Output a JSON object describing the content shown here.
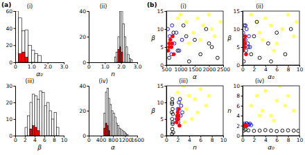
{
  "panel_labels": [
    "(a)",
    "(b)"
  ],
  "chart_data": [
    {
      "type": "histogram",
      "title": "(i)",
      "x_label": "α₀",
      "bins": [
        0,
        0.2,
        0.4,
        0.6,
        0.8,
        1.0,
        1.2,
        1.4,
        1.6
      ],
      "series": [
        {
          "color": "#ffffff",
          "values": [
            60,
            52,
            37,
            38,
            20,
            14,
            10,
            8
          ]
        },
        {
          "color": "#ff0000",
          "values": [
            0,
            10,
            12,
            6,
            0,
            0,
            0,
            0
          ]
        }
      ],
      "xlim": [
        0,
        3
      ],
      "xticks": [
        0,
        {
          "value": 1,
          "label": "1.0"
        },
        {
          "value": 2,
          "label": "2.0"
        },
        {
          "value": 3,
          "label": "3.0"
        }
      ],
      "ylim": [
        0,
        60
      ],
      "yticks": [
        0,
        20,
        40,
        60
      ]
    },
    {
      "type": "histogram",
      "title": "(ii)",
      "x_label": "n",
      "bins": [
        1.6,
        1.7,
        1.8,
        1.9,
        2.0,
        2.1,
        2.2,
        2.3,
        2.4,
        2.5,
        2.6,
        2.7
      ],
      "series": [
        {
          "color": "#ffffff",
          "values": [
            4,
            8,
            20,
            40,
            40,
            30,
            20,
            12,
            6,
            3,
            2
          ]
        },
        {
          "color": "#ff0000",
          "values": [
            0,
            0,
            10,
            12,
            8,
            0,
            0,
            0,
            0,
            0,
            0
          ]
        }
      ],
      "xlim": [
        0,
        3
      ],
      "xticks": [
        0,
        {
          "value": 1,
          "label": "1.0"
        },
        {
          "value": 2,
          "label": "2.0"
        },
        {
          "value": 3,
          "label": "3.0"
        }
      ],
      "ylim": [
        0,
        40
      ],
      "yticks": [
        0,
        20,
        40
      ]
    },
    {
      "type": "histogram",
      "title": "(iii)",
      "x_label": "β",
      "bins": [
        2,
        2.5,
        3,
        3.5,
        4,
        4.5,
        5,
        5.5,
        6,
        6.5,
        7,
        7.5,
        8,
        8.5,
        9
      ],
      "series": [
        {
          "color": "#ffffff",
          "values": [
            5,
            12,
            20,
            25,
            24,
            22,
            27,
            26,
            18,
            20,
            15,
            10,
            14,
            5
          ]
        },
        {
          "color": "#ff0000",
          "values": [
            0,
            0,
            4,
            6,
            5,
            3,
            0,
            0,
            0,
            0,
            0,
            0,
            0,
            0
          ]
        }
      ],
      "xlim": [
        0,
        10
      ],
      "xticks": [
        0,
        2,
        4,
        6,
        8,
        10
      ],
      "ylim": [
        0,
        30
      ],
      "yticks": [
        0,
        10,
        20,
        30
      ]
    },
    {
      "type": "histogram",
      "title": "(iv)",
      "x_label": "α",
      "bins": [
        500,
        550,
        600,
        650,
        700,
        750,
        800,
        850,
        900,
        950,
        1000,
        1050,
        1100,
        1150,
        1200,
        1250,
        1300
      ],
      "series": [
        {
          "color": "#ffffff",
          "values": [
            18,
            35,
            38,
            30,
            25,
            20,
            18,
            15,
            10,
            8,
            6,
            5,
            4,
            3,
            2,
            1
          ]
        },
        {
          "color": "#ff0000",
          "values": [
            6,
            10,
            8,
            4,
            0,
            0,
            0,
            0,
            0,
            0,
            0,
            0,
            0,
            0,
            0,
            0
          ]
        }
      ],
      "xlim": [
        0,
        1600
      ],
      "xticks": [
        0,
        400,
        800,
        1200,
        1600
      ],
      "ylim": [
        0,
        40
      ],
      "yticks": [
        0,
        20,
        40
      ]
    },
    {
      "type": "scatter",
      "title": "(i)",
      "x_label": "α",
      "y_label": "β",
      "xlim": [
        500,
        2500
      ],
      "xticks": [
        500,
        1000,
        1500,
        2000,
        2500
      ],
      "ylim": [
        0,
        15
      ],
      "yticks": [
        0,
        5,
        10,
        15
      ],
      "series": [
        {
          "color": "#ffff66",
          "marker": "circle",
          "x": [
            1000,
            1200,
            1450,
            1600,
            1800,
            2000,
            2200,
            2400,
            1300,
            2100,
            1700,
            900
          ],
          "values": [
            14,
            12,
            9,
            13,
            11,
            14,
            8,
            12,
            6,
            10,
            7,
            13
          ]
        },
        {
          "color": "#000000",
          "marker": "open-circle",
          "x": [
            600,
            750,
            900,
            1100,
            1300,
            1500,
            1700,
            1900,
            2100,
            2300,
            1200,
            2000
          ],
          "values": [
            2,
            9,
            4,
            11,
            1,
            7,
            3,
            10,
            5,
            2,
            8,
            6
          ]
        },
        {
          "color": "#0000ff",
          "marker": "open-circle",
          "x": [
            550,
            620,
            700,
            780,
            850,
            950,
            1050,
            680
          ],
          "values": [
            10,
            8,
            11,
            6,
            9,
            4,
            7,
            3
          ]
        },
        {
          "color": "#ff0000",
          "marker": "circle",
          "x": [
            560,
            600,
            640,
            680,
            720,
            760,
            600,
            700
          ],
          "values": [
            4,
            6,
            7,
            5,
            8,
            3,
            5,
            6
          ]
        }
      ]
    },
    {
      "type": "scatter",
      "title": "(ii)",
      "x_label": "α₀",
      "y_label": "β",
      "xlim": [
        0,
        10
      ],
      "xticks": [
        0,
        2,
        4,
        6,
        8,
        10
      ],
      "ylim": [
        0,
        15
      ],
      "yticks": [
        0,
        5,
        10,
        15
      ],
      "series": [
        {
          "color": "#ffff66",
          "marker": "circle",
          "x": [
            1.5,
            2.5,
            3,
            4,
            5,
            6,
            7,
            8,
            9,
            9.5,
            5.5,
            3.5
          ],
          "values": [
            14,
            12,
            9,
            13,
            11,
            6,
            10,
            14,
            8,
            12,
            4,
            7
          ]
        },
        {
          "color": "#000000",
          "marker": "open-circle",
          "x": [
            0.2,
            0.5,
            1,
            2,
            3,
            4.5,
            6,
            7.5,
            8.5,
            1.5,
            5,
            2.5
          ],
          "values": [
            1,
            11,
            5,
            8,
            2,
            6,
            9,
            3,
            10,
            3,
            1,
            12
          ]
        },
        {
          "color": "#0000ff",
          "marker": "open-circle",
          "x": [
            0.1,
            0.3,
            0.5,
            0.7,
            0.9,
            1.1,
            1.3,
            0.6
          ],
          "values": [
            9,
            11,
            7,
            10,
            6,
            8,
            5,
            4
          ]
        },
        {
          "color": "#ff0000",
          "marker": "circle",
          "x": [
            0.05,
            0.15,
            0.25,
            0.35,
            0.45,
            0.6,
            0.2,
            0.4
          ],
          "values": [
            4,
            6,
            7,
            5,
            8,
            3,
            5,
            6
          ]
        }
      ]
    },
    {
      "type": "scatter",
      "title": "(iii)",
      "x_label": "n",
      "y_label": "β",
      "xlim": [
        0,
        10
      ],
      "xticks": [
        0,
        2,
        4,
        6,
        8,
        10
      ],
      "ylim": [
        0,
        15
      ],
      "yticks": [
        0,
        5,
        10,
        15
      ],
      "series": [
        {
          "color": "#ffff66",
          "marker": "circle",
          "x": [
            2,
            2.5,
            3,
            3.5,
            4,
            5,
            6,
            7,
            7.5,
            4.5,
            5.5,
            3.2
          ],
          "values": [
            13,
            10,
            15,
            8,
            12,
            11,
            14,
            9,
            12,
            5,
            7,
            4
          ]
        },
        {
          "color": "#000000",
          "marker": "open-circle",
          "x": [
            1.0,
            1.05,
            1.1,
            1.0,
            1.15,
            1.1,
            1.0,
            1.05,
            1.2,
            1.1,
            0.95,
            1.0
          ],
          "values": [
            0.5,
            2,
            3.5,
            5,
            6.5,
            8,
            9.5,
            11,
            1,
            4,
            7,
            10
          ]
        },
        {
          "color": "#0000ff",
          "marker": "open-circle",
          "x": [
            1.8,
            2.0,
            2.2,
            2.4,
            2.6,
            2.8,
            2.1,
            2.5
          ],
          "values": [
            5,
            8,
            10,
            11,
            9,
            7,
            4,
            6
          ]
        },
        {
          "color": "#ff0000",
          "marker": "circle",
          "x": [
            1.8,
            1.9,
            2.0,
            2.1,
            2.2,
            2.3,
            1.95,
            2.15
          ],
          "values": [
            4,
            6,
            7,
            5,
            8,
            3,
            5,
            6
          ]
        }
      ]
    },
    {
      "type": "scatter",
      "title": "(iv)",
      "x_label": "α₀",
      "y_label": "n",
      "xlim": [
        0,
        10
      ],
      "xticks": [
        0,
        2,
        4,
        6,
        8,
        10
      ],
      "ylim": [
        0,
        10
      ],
      "yticks": [
        0,
        2,
        4,
        6,
        8,
        10
      ],
      "series": [
        {
          "color": "#ffff66",
          "marker": "circle",
          "x": [
            1.5,
            2.5,
            3.5,
            4,
            5,
            6,
            6.5,
            7.5,
            8,
            9,
            3,
            5.5
          ],
          "values": [
            6,
            8,
            5,
            9,
            4,
            7,
            10,
            6,
            8,
            5,
            4,
            3
          ]
        },
        {
          "color": "#000000",
          "marker": "open-circle",
          "x": [
            0.2,
            1,
            2,
            3,
            4,
            5,
            6,
            7,
            8,
            9,
            9.8,
            0.5
          ],
          "values": [
            1,
            1.05,
            0.95,
            1,
            1.1,
            1,
            0.9,
            1,
            1.05,
            1,
            0.95,
            1.2
          ]
        },
        {
          "color": "#0000ff",
          "marker": "open-circle",
          "x": [
            0.1,
            0.3,
            0.5,
            0.7,
            0.9,
            1.1,
            1.3,
            1.5
          ],
          "values": [
            2.2,
            2.4,
            2.1,
            2.5,
            2.3,
            2.2,
            2.4,
            2.1
          ]
        },
        {
          "color": "#ff0000",
          "marker": "circle",
          "x": [
            0.05,
            0.15,
            0.25,
            0.35,
            0.45,
            0.55,
            0.65,
            0.3
          ],
          "values": [
            2.0,
            1.9,
            2.1,
            2.0,
            1.95,
            2.05,
            1.9,
            2.0
          ]
        }
      ]
    }
  ]
}
